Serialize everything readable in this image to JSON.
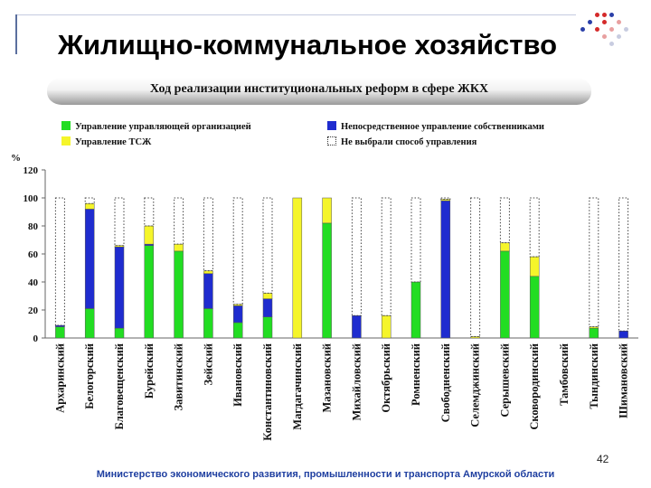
{
  "page_title": "Жилищно-коммунальное хозяйство",
  "footer_text": "Министерство экономического развития, промышленности и транспорта Амурской области",
  "page_number": "42",
  "colors": {
    "green": "#22dd22",
    "blue": "#1f2ccf",
    "yellow": "#f5f52a"
  },
  "chart_data": {
    "type": "bar",
    "stacked": true,
    "title": "Ход реализации институциональных реформ в сфере ЖКХ",
    "ylabel": "%",
    "ylim": [
      0,
      120
    ],
    "yticks": [
      "0",
      "20",
      "40",
      "60",
      "80",
      "100",
      "120"
    ],
    "legend": [
      "Управление управляющей организацией",
      "Непосредственное управление собственниками",
      "Управление ТСЖ",
      "Не выбрали способ управления"
    ],
    "categories": [
      "Архаринский",
      "Белогорский",
      "Благовещенский",
      "Бурейский",
      "Завитинский",
      "Зейский",
      "Ивановский",
      "Константиновский",
      "Магдагачинский",
      "Мазановский",
      "Михайловский",
      "Октябрьский",
      "Ромненский",
      "Свободненский",
      "Селемджинский",
      "Серышевский",
      "Сковородинский",
      "Тамбовский",
      "Тындинский",
      "Шимановский"
    ],
    "series": [
      {
        "name": "Управление управляющей организацией",
        "values": [
          8,
          21,
          7,
          66,
          62,
          21,
          11,
          15,
          0,
          82,
          0,
          0,
          40,
          0,
          0,
          62,
          44,
          0,
          7,
          0
        ]
      },
      {
        "name": "Непосредственное управление собственниками",
        "values": [
          1,
          71,
          58,
          1,
          0,
          25,
          12,
          13,
          0,
          0,
          16,
          0,
          0,
          98,
          0,
          0,
          0,
          0,
          0,
          5
        ]
      },
      {
        "name": "Управление ТСЖ",
        "values": [
          0,
          4,
          1,
          13,
          5,
          2,
          1,
          4,
          100,
          18,
          0,
          16,
          0,
          1,
          1,
          6,
          14,
          0,
          1,
          0
        ]
      },
      {
        "name": "Не выбрали способ управления",
        "values": [
          91,
          4,
          34,
          20,
          33,
          52,
          76,
          68,
          0,
          0,
          84,
          84,
          60,
          1,
          99,
          32,
          42,
          0,
          92,
          95
        ]
      }
    ]
  }
}
